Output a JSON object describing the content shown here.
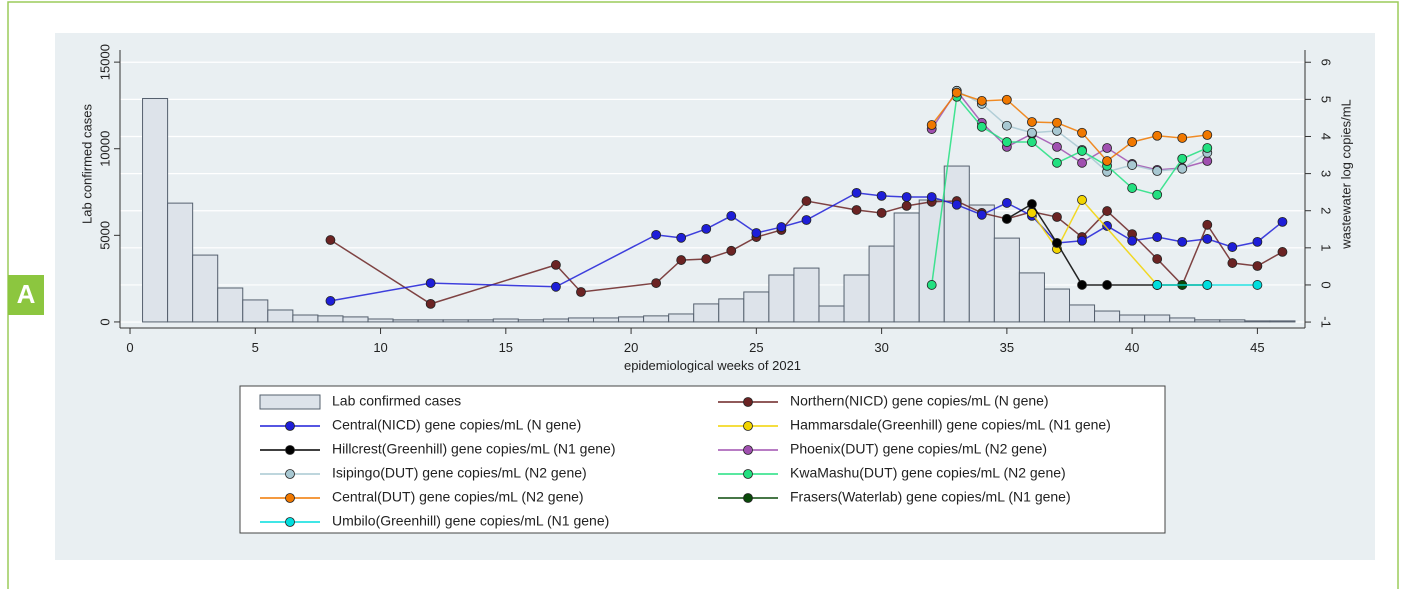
{
  "panel_label": "A",
  "chart_data": {
    "type": "combo",
    "xlabel": "epidemiological weeks of 2021",
    "ylabel": "Lab confirmed cases",
    "y2label": "wastewater log copies/mL",
    "xlim": [
      -0.4,
      46.9
    ],
    "xticks": [
      0,
      5,
      10,
      15,
      20,
      25,
      30,
      35,
      40,
      45
    ],
    "ylim": [
      -350,
      15700
    ],
    "yticks": [
      0,
      5000,
      10000,
      15000
    ],
    "y2lim": [
      -1.16,
      6.33
    ],
    "y2ticks": [
      -1,
      0,
      1,
      2,
      3,
      4,
      5,
      6
    ],
    "grid": true,
    "bars": {
      "name": "Lab confirmed cases",
      "color": "#dde3ea",
      "bins": [
        0.5,
        1.5,
        2.5,
        3.5,
        4.5,
        5.5,
        6.5,
        7.5,
        8.5,
        9.5,
        10.5,
        11.5,
        12.5,
        13.5,
        14.5,
        15.5,
        16.5,
        17.5,
        18.5,
        19.5,
        20.5,
        21.5,
        22.5,
        23.5,
        24.5,
        25.5,
        26.5,
        27.5,
        28.5,
        29.5,
        30.5,
        31.5,
        32.5,
        33.5,
        34.5,
        35.5,
        36.5,
        37.5,
        38.5,
        39.5,
        40.5,
        41.5,
        42.5,
        43.5,
        44.5,
        45.5,
        46.5
      ],
      "values": [
        12900,
        6860,
        3860,
        1960,
        1270,
        690,
        400,
        350,
        290,
        170,
        120,
        120,
        120,
        120,
        170,
        120,
        170,
        230,
        230,
        290,
        350,
        460,
        1040,
        1330,
        1730,
        2710,
        3110,
        920,
        2710,
        4380,
        6290,
        7040,
        9000,
        6750,
        4840,
        2830,
        1900,
        980,
        630,
        400,
        400,
        230,
        120,
        120,
        60,
        60
      ]
    },
    "series": [
      {
        "name": "Northern(NICD) gene copies/mL (N gene)",
        "color": "#6b2323",
        "axis": "y2",
        "x": [
          8,
          12,
          17,
          18,
          21,
          22,
          23,
          24,
          25,
          26,
          27,
          29,
          30,
          31,
          32,
          33,
          34,
          35,
          36,
          37,
          38,
          39,
          40,
          41,
          42,
          43,
          44,
          45,
          46
        ],
        "values": [
          1.21,
          -0.51,
          0.54,
          -0.19,
          0.05,
          0.67,
          0.7,
          0.92,
          1.29,
          1.48,
          2.26,
          2.02,
          1.94,
          2.13,
          2.24,
          2.26,
          1.94,
          1.78,
          1.97,
          1.83,
          1.29,
          1.99,
          1.37,
          0.7,
          0,
          1.62,
          0.59,
          0.51,
          0.89
        ]
      },
      {
        "name": "Central(NICD) gene copies/mL (N gene)",
        "color": "#1e1ed8",
        "axis": "y2",
        "x": [
          8,
          12,
          17,
          21,
          22,
          23,
          24,
          25,
          26,
          27,
          29,
          30,
          31,
          32,
          33,
          34,
          35,
          36,
          37,
          38,
          39,
          40,
          41,
          42,
          43,
          44,
          45,
          46
        ],
        "values": [
          -0.43,
          0.05,
          -0.05,
          1.35,
          1.27,
          1.51,
          1.86,
          1.4,
          1.56,
          1.75,
          2.48,
          2.4,
          2.37,
          2.37,
          2.16,
          1.89,
          2.21,
          1.86,
          1.13,
          1.19,
          1.59,
          1.19,
          1.29,
          1.16,
          1.24,
          1.02,
          1.16,
          1.7
        ]
      },
      {
        "name": "Hammarsdale(Greenhill) gene copies/mL (N1 gene)",
        "color": "#f2d400",
        "axis": "y2",
        "x": [
          36,
          37,
          38,
          41
        ],
        "values": [
          1.94,
          0.97,
          2.29,
          0
        ]
      },
      {
        "name": "Hillcrest(Greenhill) gene copies/mL (N1 gene)",
        "color": "#000000",
        "axis": "y2",
        "x": [
          35,
          36,
          37,
          38,
          39,
          41
        ],
        "values": [
          1.78,
          2.18,
          1.13,
          0,
          0,
          0
        ]
      },
      {
        "name": "Phoenix(DUT) gene copies/mL (N2 gene)",
        "color": "#a050b0",
        "axis": "y2",
        "x": [
          32,
          33,
          34,
          35,
          36,
          37,
          38,
          39,
          40,
          41,
          42,
          43
        ],
        "values": [
          4.2,
          5.23,
          4.37,
          3.72,
          4.07,
          3.72,
          3.29,
          3.69,
          3.26,
          3.1,
          3.15,
          3.34
        ]
      },
      {
        "name": "Isipingo(DUT) gene copies/mL (N2 gene)",
        "color": "#a8c8d2",
        "axis": "y2",
        "x": [
          33,
          34,
          35,
          36,
          37,
          38,
          39,
          40,
          41,
          42,
          43
        ],
        "values": [
          5.23,
          4.88,
          4.29,
          4.1,
          4.15,
          3.64,
          3.05,
          3.23,
          3.07,
          3.13,
          3.56
        ]
      },
      {
        "name": "KwaMashu(DUT) gene copies/mL (N2 gene)",
        "color": "#22e080",
        "axis": "y2",
        "x": [
          32,
          33,
          34,
          35,
          36,
          37,
          38,
          39,
          40,
          41,
          42,
          43
        ],
        "values": [
          0,
          5.07,
          4.26,
          3.85,
          3.85,
          3.29,
          3.61,
          3.21,
          2.61,
          2.43,
          3.4,
          3.69
        ]
      },
      {
        "name": "Central(DUT) gene copies/mL (N2 gene)",
        "color": "#f07800",
        "axis": "y2",
        "x": [
          32,
          33,
          34,
          35,
          36,
          37,
          38,
          39,
          40,
          41,
          42,
          43
        ],
        "values": [
          4.31,
          5.18,
          4.96,
          4.99,
          4.39,
          4.37,
          4.1,
          3.34,
          3.85,
          4.02,
          3.96,
          4.04
        ]
      },
      {
        "name": "Frasers(Waterlab) gene copies/mL (N1 gene)",
        "color": "#0a4a0a",
        "axis": "y2",
        "x": [
          41,
          42,
          43
        ],
        "values": [
          0,
          0,
          0
        ]
      },
      {
        "name": "Umbilo(Greenhill) gene copies/mL (N1 gene)",
        "color": "#00dede",
        "axis": "y2",
        "x": [
          41,
          43,
          45
        ],
        "values": [
          0,
          0,
          0
        ]
      }
    ]
  }
}
